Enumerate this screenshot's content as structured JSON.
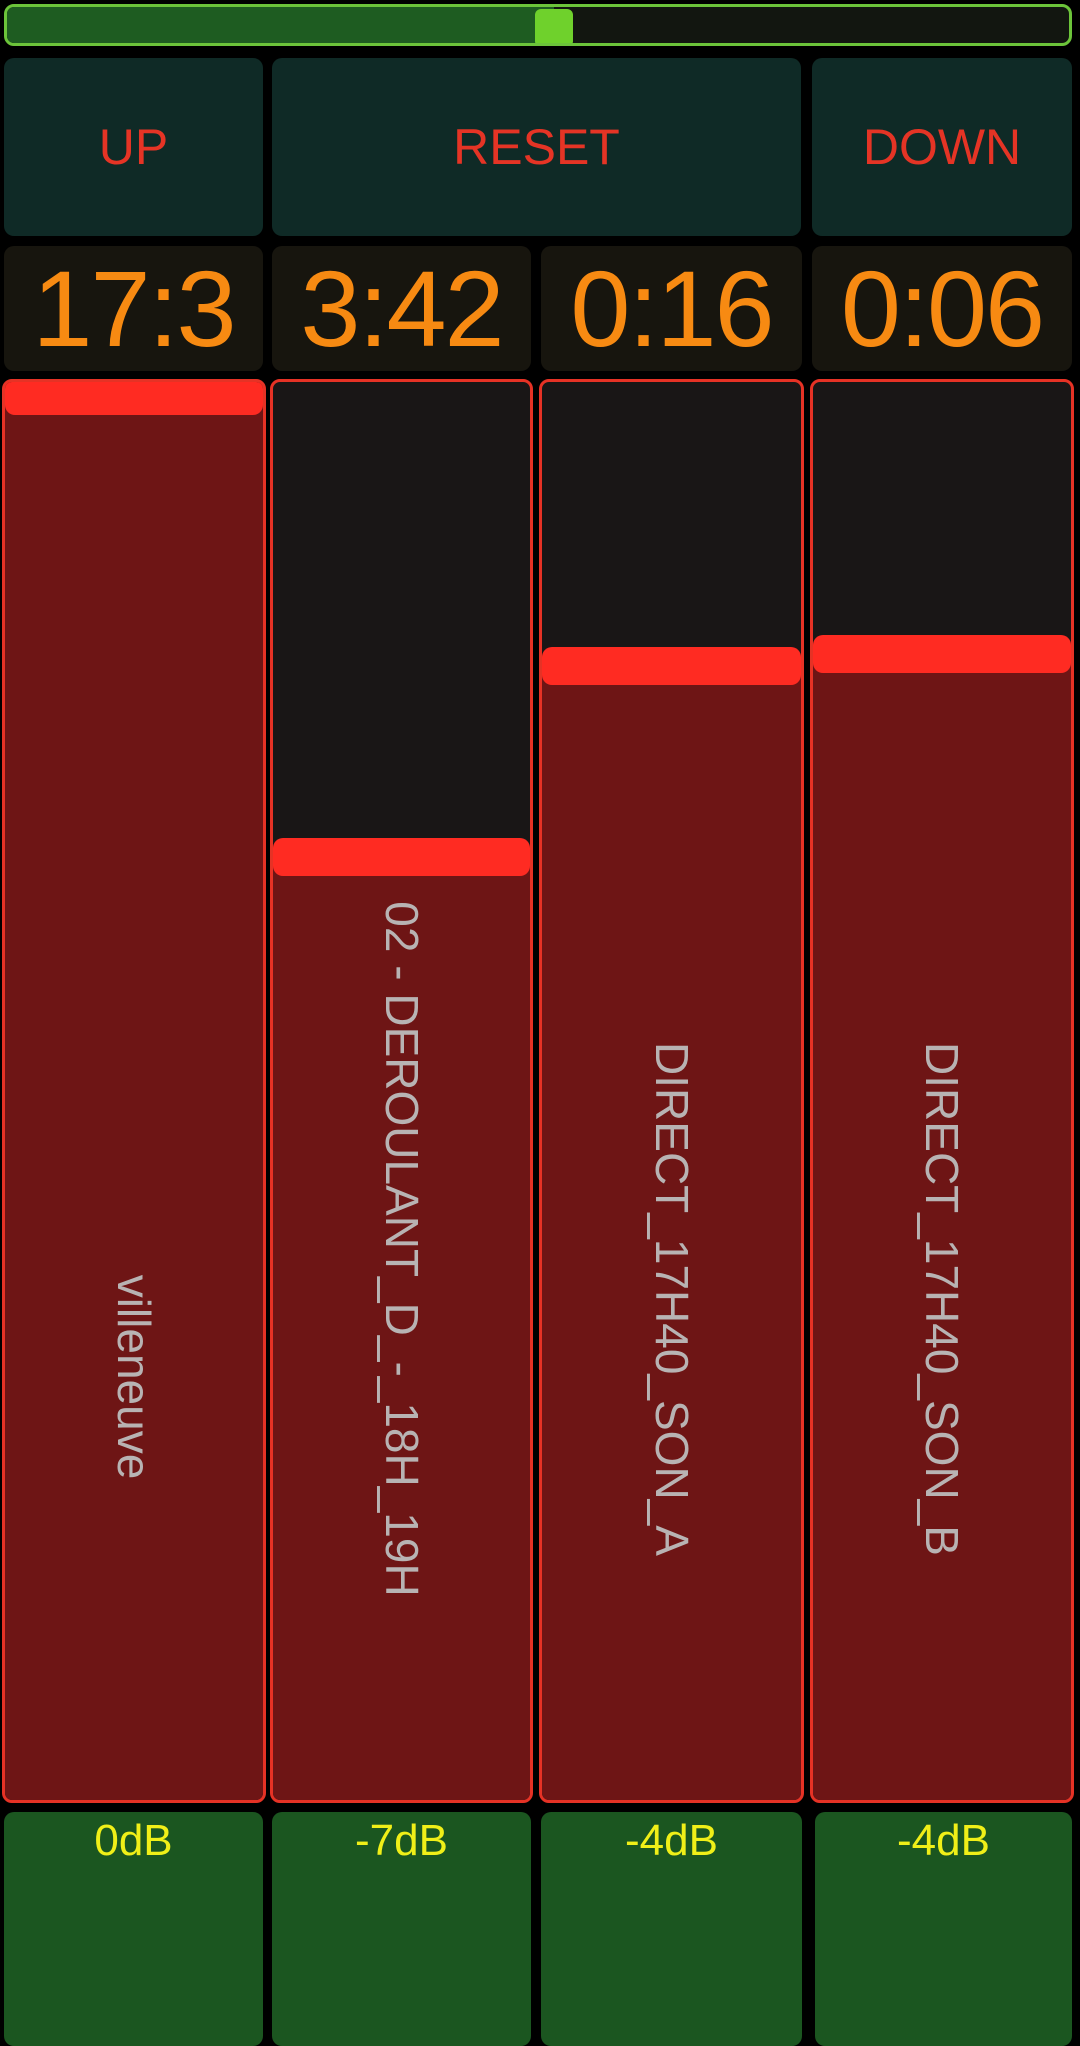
{
  "top_slider": {
    "position": 0.515
  },
  "controls": {
    "up_label": "UP",
    "reset_label": "RESET",
    "down_label": "DOWN"
  },
  "channels": [
    {
      "time": "17:3",
      "name": "villeneuve",
      "level": 0.99,
      "db": "0dB"
    },
    {
      "time": "3:42",
      "name": "02 - DEROULANT_D_-_18H_19H",
      "level": 0.665,
      "db": "-7dB"
    },
    {
      "time": "0:16",
      "name": "DIRECT_17H40_SON_A",
      "level": 0.8,
      "db": "-4dB"
    },
    {
      "time": "0:06",
      "name": "DIRECT_17H40_SON_B",
      "level": 0.808,
      "db": "-4dB"
    }
  ],
  "colors": {
    "fader_fill": "#6e1515",
    "fader_handle": "#ff2b22",
    "time_text": "#f78a12",
    "db_text": "#f0ef18",
    "button_text": "#e53425",
    "slider_thumb": "#6fd12c"
  }
}
